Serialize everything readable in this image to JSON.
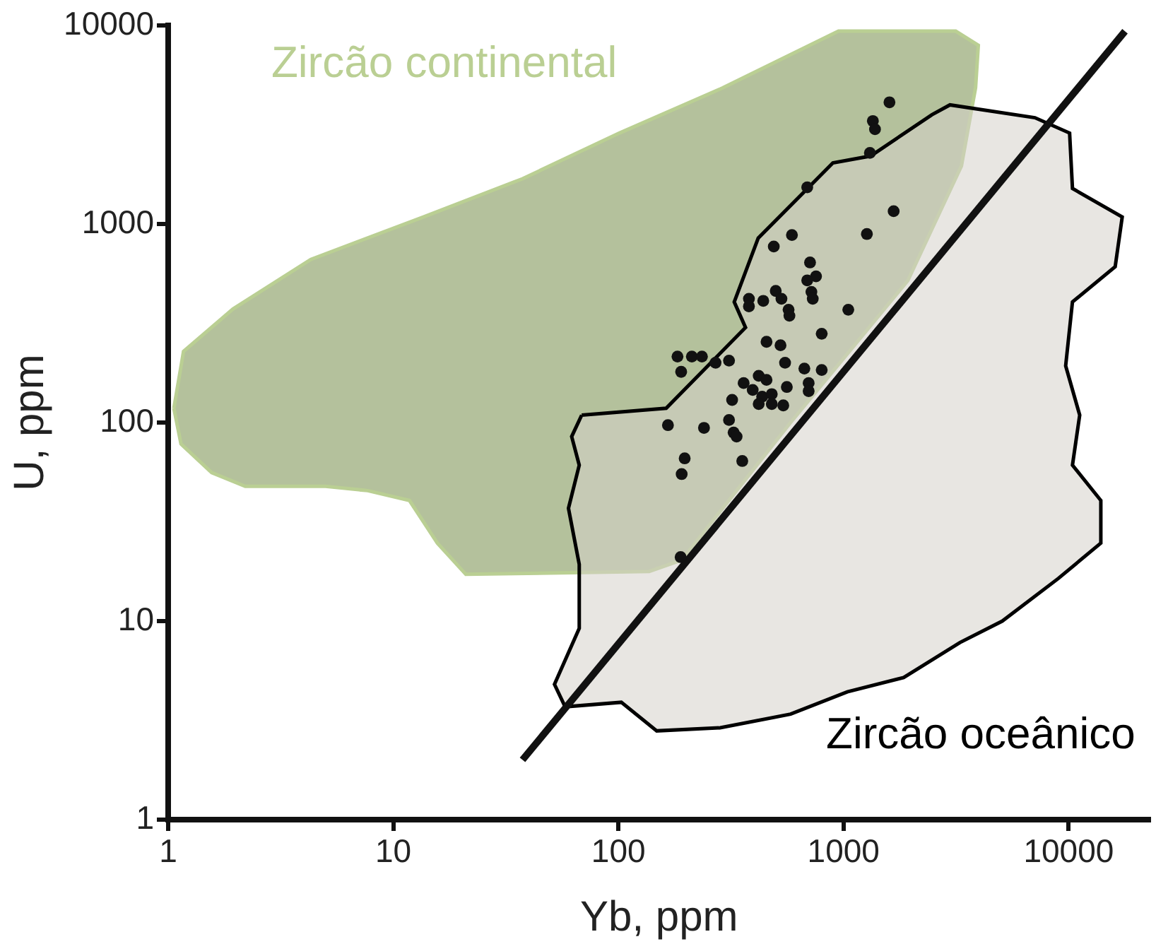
{
  "chart_data": {
    "type": "scatter",
    "xlabel": "Yb, ppm",
    "ylabel": "U, ppm",
    "log": "xy",
    "xlim": [
      1,
      23000
    ],
    "xticks": [
      1,
      10,
      100,
      1000,
      10000
    ],
    "ylim": [
      1,
      10000
    ],
    "yticks": [
      1,
      10,
      100,
      1000,
      10000
    ],
    "grid": false,
    "legend": false,
    "series": [
      {
        "name": "Zircão continental",
        "type": "area",
        "color": "#b4c19c",
        "x": [
          1.06,
          1.17,
          1.94,
          4.3,
          13.6,
          37.5,
          101,
          291,
          950,
          3150,
          3970,
          3860,
          3340,
          1930,
          582,
          191,
          137,
          21,
          15.7,
          11.8,
          7.7,
          5.0,
          2.2,
          1.56,
          1.14
        ],
        "values": [
          118,
          228,
          373,
          663,
          1085,
          1690,
          2870,
          4850,
          9360,
          9360,
          7940,
          4850,
          1960,
          518,
          100,
          20.3,
          17.8,
          17.2,
          24.7,
          40.5,
          45.4,
          47.7,
          47.7,
          56,
          78
        ]
      },
      {
        "name": "Zircão oceânico",
        "type": "area",
        "color": "#d6d2ca",
        "x": [
          68.7,
          163,
          367,
          327,
          418,
          897,
          1320,
          2470,
          2970,
          7080,
          10100,
          10400,
          17300,
          16100,
          10400,
          9700,
          11200,
          10400,
          13900,
          13900,
          9000,
          5070,
          3290,
          1850,
          1040,
          582,
          283,
          148,
          103,
          58,
          52,
          67,
          67,
          60,
          67,
          62
        ],
        "values": [
          109,
          118,
          301,
          405,
          849,
          2030,
          2200,
          3550,
          3980,
          3430,
          2870,
          1510,
          1085,
          610,
          405,
          193,
          109,
          61,
          40.5,
          24.7,
          16.4,
          10,
          7.8,
          5.2,
          4.4,
          3.4,
          2.9,
          2.8,
          3.9,
          3.7,
          4.8,
          9.2,
          19.3,
          37,
          61,
          85
        ]
      },
      {
        "type": "line",
        "color": "#111111",
        "marker": "none",
        "x": [
          37.5,
          17800
        ],
        "values": [
          2.0,
          9350
        ]
      },
      {
        "marker": "circle",
        "color": "#111111",
        "x": [
          1600,
          1350,
          1380,
          1310,
          690,
          1670,
          1270,
          590,
          490,
          710,
          755,
          690,
          720,
          730,
          380,
          440,
          500,
          530,
          570,
          575,
          380,
          1050,
          800,
          455,
          525,
          550,
          183,
          212,
          235,
          270,
          310,
          190,
          670,
          800,
          700,
          700,
          360,
          420,
          455,
          395,
          435,
          480,
          560,
          420,
          480,
          540,
          320,
          310,
          166,
          240,
          325,
          335,
          197,
          355,
          191,
          189
        ],
        "values": [
          4100,
          3300,
          3000,
          2280,
          1530,
          1160,
          890,
          880,
          770,
          640,
          545,
          520,
          455,
          420,
          420,
          410,
          460,
          420,
          370,
          345,
          385,
          370,
          280,
          255,
          245,
          200,
          215,
          215,
          215,
          200,
          205,
          180,
          187,
          184,
          158,
          144,
          158,
          172,
          164,
          146,
          135,
          139,
          151,
          124,
          124,
          122,
          130,
          103,
          97,
          94,
          89,
          85,
          66,
          64,
          55,
          21
        ]
      }
    ]
  }
}
